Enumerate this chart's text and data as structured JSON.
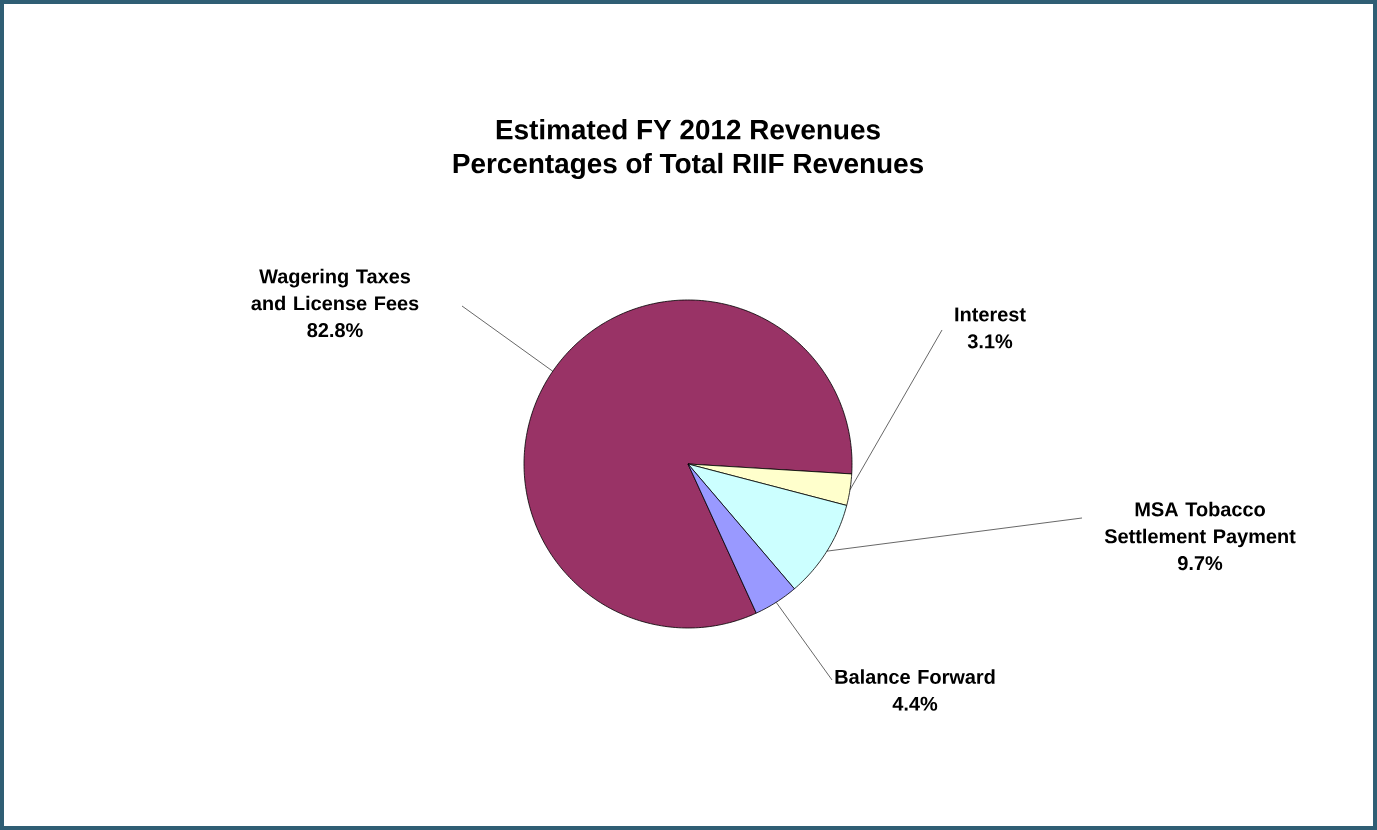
{
  "chart_data": {
    "type": "pie",
    "title": "Estimated FY 2012 Revenues",
    "subtitle": "Percentages of Total RIIF Revenues",
    "categories": [
      "Wagering Taxes and License Fees",
      "Interest",
      "MSA Tobacco Settlement Payment",
      "Balance Forward"
    ],
    "values": [
      82.8,
      3.1,
      9.7,
      4.4
    ],
    "value_labels": [
      "82.8%",
      "3.1%",
      "9.7%",
      "4.4%"
    ],
    "colors": [
      "#993366",
      "#ffffcc",
      "#ccffff",
      "#9999ff"
    ]
  }
}
